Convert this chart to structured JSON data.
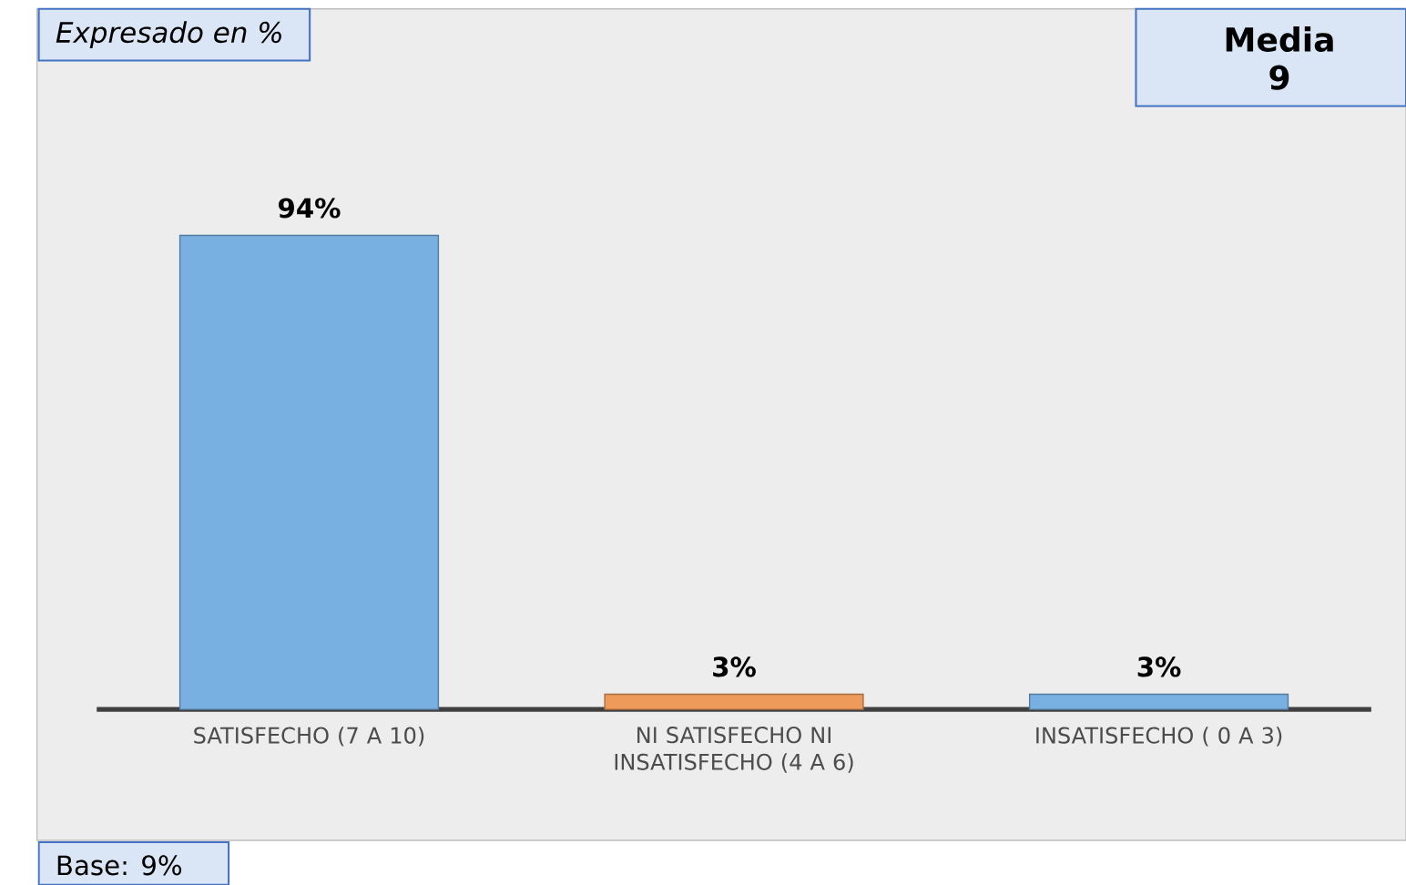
{
  "chart_data": {
    "type": "bar",
    "categories": [
      "SATISFECHO (7 A 10)",
      "NI SATISFECHO NI INSATISFECHO (4 A 6)",
      "INSATISFECHO ( 0 A 3)"
    ],
    "values": [
      94,
      3,
      3
    ],
    "colors": [
      "#78b0e2",
      "#ee9a5a",
      "#78b0e2"
    ],
    "value_labels": [
      "94%",
      "3%",
      "3%"
    ],
    "annotations": [
      "Expresado en %",
      "Media",
      "9",
      "Base: 9%"
    ]
  }
}
